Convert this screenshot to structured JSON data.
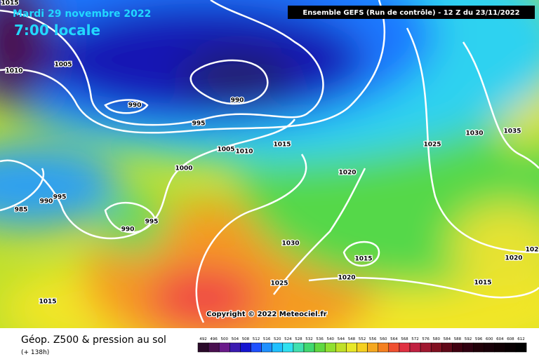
{
  "header": {
    "date": "Mardi 29 novembre 2022",
    "time": "7:00 locale",
    "run": "Ensemble GEFS  (Run de contrôle)  -  12 Z du 23/11/2022"
  },
  "isobars": [
    "1015",
    "1010",
    "1005",
    "990",
    "990",
    "995",
    "1005",
    "1010",
    "1015",
    "1000",
    "1020",
    "1025",
    "1030",
    "1035",
    "985",
    "990",
    "995",
    "990",
    "995",
    "1030",
    "1015",
    "1020",
    "1025",
    "1015",
    "1020",
    "1015",
    "102"
  ],
  "copyright": "Copyright © 2022 Meteociel.fr",
  "legend": {
    "title": "Géop. Z500 & pression au sol",
    "subtitle": "(+ 138h)",
    "scale": [
      492,
      496,
      500,
      504,
      508,
      512,
      516,
      520,
      524,
      528,
      532,
      536,
      540,
      544,
      548,
      552,
      556,
      560,
      564,
      568,
      572,
      576,
      580,
      584,
      588,
      592,
      596,
      600,
      604,
      608,
      612
    ]
  }
}
